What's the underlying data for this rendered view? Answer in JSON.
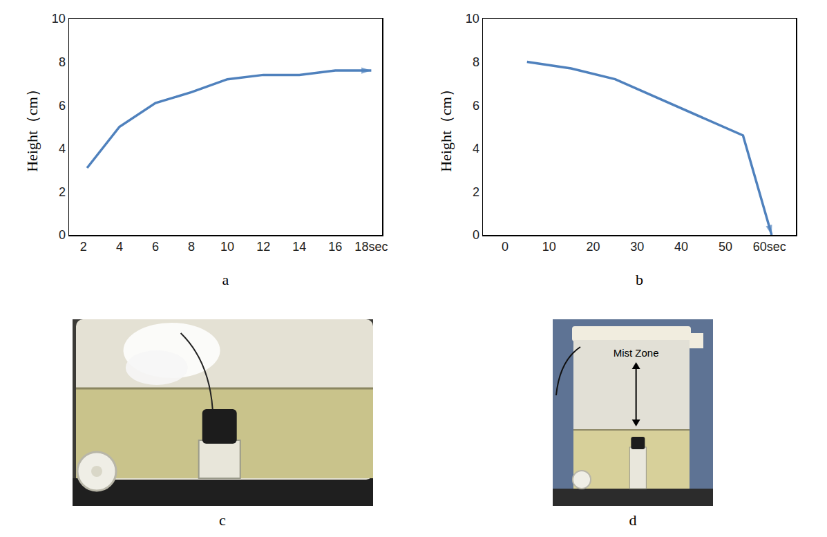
{
  "chart_data": [
    {
      "panel": "a",
      "type": "line",
      "x": [
        2.2,
        4,
        6,
        8,
        10,
        12,
        14,
        16,
        18
      ],
      "series": [
        {
          "color": "#4f81bd",
          "marker": "arrow",
          "values": [
            3.1,
            5.0,
            6.1,
            6.6,
            7.2,
            7.4,
            7.4,
            7.6,
            7.6
          ]
        }
      ],
      "y_label": "Height（cm）",
      "xlim": [
        1.2,
        18.6
      ],
      "xticks": [
        2,
        4,
        6,
        8,
        10,
        12,
        14,
        16,
        {
          "value": 18,
          "label": "18sec"
        }
      ],
      "ylim": [
        0,
        10
      ],
      "yticks": [
        0,
        2,
        4,
        6,
        8,
        10
      ],
      "grid": false
    },
    {
      "panel": "b",
      "type": "line",
      "x": [
        5,
        15,
        25,
        35,
        45,
        54,
        60.5
      ],
      "series": [
        {
          "color": "#4f81bd",
          "marker": "arrow",
          "values": [
            8.0,
            7.7,
            7.2,
            6.3,
            5.4,
            4.6,
            0
          ]
        }
      ],
      "y_label": "Height（cm）",
      "xlim": [
        -5,
        66
      ],
      "xticks": [
        0,
        10,
        20,
        30,
        40,
        50,
        {
          "value": 60,
          "label": "60sec"
        }
      ],
      "ylim": [
        0,
        10
      ],
      "yticks": [
        0,
        2,
        4,
        6,
        8,
        10
      ],
      "grid": false
    }
  ],
  "photos": [
    {
      "panel": "c"
    },
    {
      "panel": "d",
      "annotation": "Mist Zone"
    }
  ]
}
